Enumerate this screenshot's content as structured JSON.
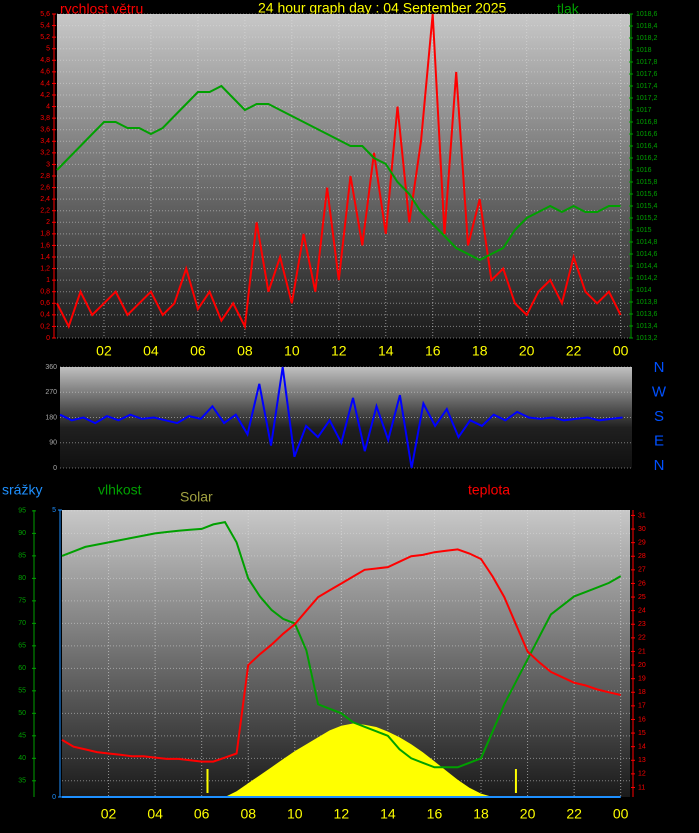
{
  "chart_data": [
    {
      "type": "line",
      "title": "24 hour graph day : 04 September 2025",
      "x": [
        0,
        0.5,
        1,
        1.5,
        2,
        2.5,
        3,
        3.5,
        4,
        4.5,
        5,
        5.5,
        6,
        6.5,
        7,
        7.5,
        8,
        8.5,
        9,
        9.5,
        10,
        10.5,
        11,
        11.5,
        12,
        12.5,
        13,
        13.5,
        14,
        14.5,
        15,
        15.5,
        16,
        16.5,
        17,
        17.5,
        18,
        18.5,
        19,
        19.5,
        20,
        20.5,
        21,
        21.5,
        22,
        22.5,
        23,
        23.5,
        24
      ],
      "xlim": [
        0,
        24.4
      ],
      "xticks": [
        {
          "value": 2,
          "label": "02"
        },
        {
          "value": 4,
          "label": "04"
        },
        {
          "value": 6,
          "label": "06"
        },
        {
          "value": 8,
          "label": "08"
        },
        10,
        12,
        14,
        16,
        18,
        20,
        22,
        {
          "value": 24,
          "label": "00"
        }
      ],
      "ylim": [
        0,
        5.6
      ],
      "yticks": [
        0,
        {
          "value": 0.2,
          "label": "0,2"
        },
        {
          "value": 0.4,
          "label": "0,4"
        },
        {
          "value": 0.6,
          "label": "0,6"
        },
        {
          "value": 0.8,
          "label": "0,8"
        },
        1,
        {
          "value": 1.2,
          "label": "1,2"
        },
        {
          "value": 1.4,
          "label": "1,4"
        },
        {
          "value": 1.6,
          "label": "1,6"
        },
        {
          "value": 1.8,
          "label": "1,8"
        },
        2,
        {
          "value": 2.2,
          "label": "2,2"
        },
        {
          "value": 2.4,
          "label": "2,4"
        },
        {
          "value": 2.6,
          "label": "2,6"
        },
        {
          "value": 2.8,
          "label": "2,8"
        },
        3,
        {
          "value": 3.2,
          "label": "3,2"
        },
        {
          "value": 3.4,
          "label": "3,4"
        },
        {
          "value": 3.6,
          "label": "3,6"
        },
        {
          "value": 3.8,
          "label": "3,8"
        },
        4,
        {
          "value": 4.2,
          "label": "4,2"
        },
        {
          "value": 4.4,
          "label": "4,4"
        },
        {
          "value": 4.6,
          "label": "4,6"
        },
        {
          "value": 4.8,
          "label": "4,8"
        },
        5,
        {
          "value": 5.2,
          "label": "5,2"
        },
        {
          "value": 5.4,
          "label": "5,4"
        },
        {
          "value": 5.6,
          "label": "5,6"
        }
      ],
      "y2lim": [
        1013.2,
        1018.6
      ],
      "y2ticks": [
        {
          "value": 1013.2,
          "label": "1013,2"
        },
        {
          "value": 1013.4,
          "label": "1013,4"
        },
        {
          "value": 1013.6,
          "label": "1013,6"
        },
        {
          "value": 1013.8,
          "label": "1013,8"
        },
        1014,
        {
          "value": 1014.2,
          "label": "1014,2"
        },
        {
          "value": 1014.4,
          "label": "1014,4"
        },
        {
          "value": 1014.6,
          "label": "1014,6"
        },
        {
          "value": 1014.8,
          "label": "1014,8"
        },
        1015,
        {
          "value": 1015.2,
          "label": "1015,2"
        },
        {
          "value": 1015.4,
          "label": "1015,4"
        },
        {
          "value": 1015.6,
          "label": "1015,6"
        },
        {
          "value": 1015.8,
          "label": "1015,8"
        },
        1016,
        {
          "value": 1016.2,
          "label": "1016,2"
        },
        {
          "value": 1016.4,
          "label": "1016,4"
        },
        {
          "value": 1016.6,
          "label": "1016,6"
        },
        {
          "value": 1016.8,
          "label": "1016,8"
        },
        1017,
        {
          "value": 1017.2,
          "label": "1017,2"
        },
        {
          "value": 1017.4,
          "label": "1017,4"
        },
        {
          "value": 1017.6,
          "label": "1017,6"
        },
        {
          "value": 1017.8,
          "label": "1017,8"
        },
        1018,
        {
          "value": 1018.2,
          "label": "1018,2"
        },
        {
          "value": 1018.4,
          "label": "1018,4"
        },
        {
          "value": 1018.6,
          "label": "1018,6"
        }
      ],
      "series": [
        {
          "name": "rychlost větru",
          "color": "#ff0000",
          "values": [
            0.6,
            0.2,
            0.8,
            0.4,
            0.6,
            0.8,
            0.4,
            0.6,
            0.8,
            0.4,
            0.6,
            1.2,
            0.5,
            0.8,
            0.3,
            0.6,
            0.2,
            2.0,
            0.8,
            1.4,
            0.6,
            1.8,
            0.8,
            2.6,
            1.0,
            2.8,
            1.6,
            3.2,
            1.8,
            4.0,
            2.0,
            3.4,
            5.6,
            1.8,
            4.6,
            1.6,
            2.4,
            1.0,
            1.2,
            0.6,
            0.4,
            0.8,
            1.0,
            0.6,
            1.4,
            0.8,
            0.6,
            0.8,
            0.4
          ]
        },
        {
          "name": "tlak",
          "color": "#00a000",
          "axis": "y2",
          "values": [
            1016.0,
            1016.2,
            1016.4,
            1016.6,
            1016.8,
            1016.8,
            1016.7,
            1016.7,
            1016.6,
            1016.7,
            1016.9,
            1017.1,
            1017.3,
            1017.3,
            1017.4,
            1017.2,
            1017.0,
            1017.1,
            1017.1,
            1017.0,
            1016.9,
            1016.8,
            1016.7,
            1016.6,
            1016.5,
            1016.4,
            1016.4,
            1016.2,
            1016.1,
            1015.8,
            1015.6,
            1015.3,
            1015.1,
            1014.9,
            1014.7,
            1014.6,
            1014.5,
            1014.6,
            1014.7,
            1015.0,
            1015.2,
            1015.3,
            1015.4,
            1015.3,
            1015.4,
            1015.3,
            1015.3,
            1015.4,
            1015.4
          ]
        }
      ]
    },
    {
      "type": "line",
      "x": [
        0,
        0.5,
        1,
        1.5,
        2,
        2.5,
        3,
        3.5,
        4,
        4.5,
        5,
        5.5,
        6,
        6.5,
        7,
        7.5,
        8,
        8.5,
        9,
        9.5,
        10,
        10.5,
        11,
        11.5,
        12,
        12.5,
        13,
        13.5,
        14,
        14.5,
        15,
        15.5,
        16,
        16.5,
        17,
        17.5,
        18,
        18.5,
        19,
        19.5,
        20,
        20.5,
        21,
        21.5,
        22,
        22.5,
        23,
        23.5,
        24
      ],
      "xlim": [
        0,
        24.4
      ],
      "ylim": [
        0,
        360
      ],
      "yticks": [
        0,
        90,
        180,
        270,
        360
      ],
      "direction_labels": [
        "N",
        "W",
        "S",
        "E",
        "N"
      ],
      "series": [
        {
          "color": "#0000ff",
          "values": [
            190,
            170,
            180,
            160,
            185,
            170,
            190,
            175,
            180,
            170,
            160,
            185,
            175,
            220,
            160,
            190,
            120,
            300,
            80,
            360,
            40,
            150,
            110,
            170,
            90,
            250,
            60,
            220,
            100,
            260,
            0,
            230,
            150,
            210,
            110,
            170,
            150,
            190,
            170,
            200,
            180,
            175,
            180,
            170,
            175,
            180,
            170,
            175,
            180
          ]
        }
      ]
    },
    {
      "type": "line",
      "x": [
        0,
        0.5,
        1,
        1.5,
        2,
        2.5,
        3,
        3.5,
        4,
        4.5,
        5,
        5.5,
        6,
        6.5,
        7,
        7.5,
        8,
        8.5,
        9,
        9.5,
        10,
        10.5,
        11,
        11.5,
        12,
        12.5,
        13,
        13.5,
        14,
        14.5,
        15,
        15.5,
        16,
        16.5,
        17,
        17.5,
        18,
        18.5,
        19,
        19.5,
        20,
        20.5,
        21,
        21.5,
        22,
        22.5,
        23,
        23.5,
        24
      ],
      "xlim": [
        0,
        24.4
      ],
      "xticks": [
        {
          "value": 2,
          "label": "02"
        },
        {
          "value": 4,
          "label": "04"
        },
        {
          "value": 6,
          "label": "06"
        },
        {
          "value": 8,
          "label": "08"
        },
        10,
        12,
        14,
        16,
        18,
        20,
        22,
        {
          "value": 24,
          "label": "00"
        }
      ],
      "sun_markers_x": [
        6.25,
        19.5
      ],
      "series": [
        {
          "name": "Solar",
          "color": "#ffff00",
          "style": "area",
          "ylim": [
            0,
            2500
          ],
          "values": [
            0,
            0,
            0,
            0,
            0,
            0,
            0,
            0,
            0,
            0,
            0,
            0,
            0,
            0,
            0,
            50,
            120,
            190,
            260,
            330,
            400,
            460,
            520,
            580,
            620,
            640,
            630,
            610,
            570,
            520,
            460,
            390,
            310,
            230,
            150,
            80,
            30,
            0,
            0,
            0,
            0,
            0,
            0,
            0,
            0,
            0,
            0,
            0,
            0
          ]
        },
        {
          "name": "srážky",
          "color": "#1e90ff",
          "ylim": [
            0,
            5
          ],
          "yticks": [
            0,
            5
          ],
          "values": [
            0,
            0,
            0,
            0,
            0,
            0,
            0,
            0,
            0,
            0,
            0,
            0,
            0,
            0,
            0,
            0,
            0,
            0,
            0,
            0,
            0,
            0,
            0,
            0,
            0,
            0,
            0,
            0,
            0,
            0,
            0,
            0,
            0,
            0,
            0,
            0,
            0,
            0,
            0,
            0,
            0,
            0,
            0,
            0,
            0,
            0,
            0,
            0,
            0
          ]
        },
        {
          "name": "vlhkost",
          "color": "#00a000",
          "ylim": [
            31.4,
            95.2
          ],
          "yticks": [
            35,
            40,
            45,
            50,
            55,
            60,
            65,
            70,
            75,
            80,
            85,
            90,
            95
          ],
          "values": [
            85,
            86,
            87,
            87.5,
            88,
            88.5,
            89,
            89.5,
            90,
            90.3,
            90.6,
            90.8,
            91,
            92,
            92.5,
            88,
            80,
            76,
            73,
            71,
            70,
            64,
            52,
            51,
            50,
            48,
            47,
            46,
            45,
            42,
            40,
            39,
            38,
            38,
            38,
            39,
            40,
            46,
            52,
            57,
            62,
            67,
            72,
            74,
            76,
            77,
            78,
            79,
            80.5
          ]
        },
        {
          "name": "teplota",
          "color": "#ff0000",
          "ylim": [
            10.3,
            31.4
          ],
          "yticks": [
            11,
            12,
            13,
            14,
            15,
            16,
            17,
            18,
            19,
            20,
            21,
            22,
            23,
            24,
            25,
            26,
            27,
            28,
            29,
            30,
            31
          ],
          "values": [
            14.5,
            14,
            13.8,
            13.6,
            13.5,
            13.4,
            13.3,
            13.3,
            13.2,
            13.1,
            13.1,
            13,
            12.9,
            12.9,
            13.2,
            13.5,
            20,
            20.8,
            21.5,
            22.3,
            23,
            24,
            25,
            25.5,
            26,
            26.5,
            27,
            27.1,
            27.2,
            27.6,
            28,
            28.1,
            28.3,
            28.4,
            28.5,
            28.2,
            27.8,
            26.5,
            25,
            23,
            21,
            20.2,
            19.5,
            19.1,
            18.7,
            18.5,
            18.2,
            18,
            17.8
          ]
        }
      ]
    }
  ]
}
